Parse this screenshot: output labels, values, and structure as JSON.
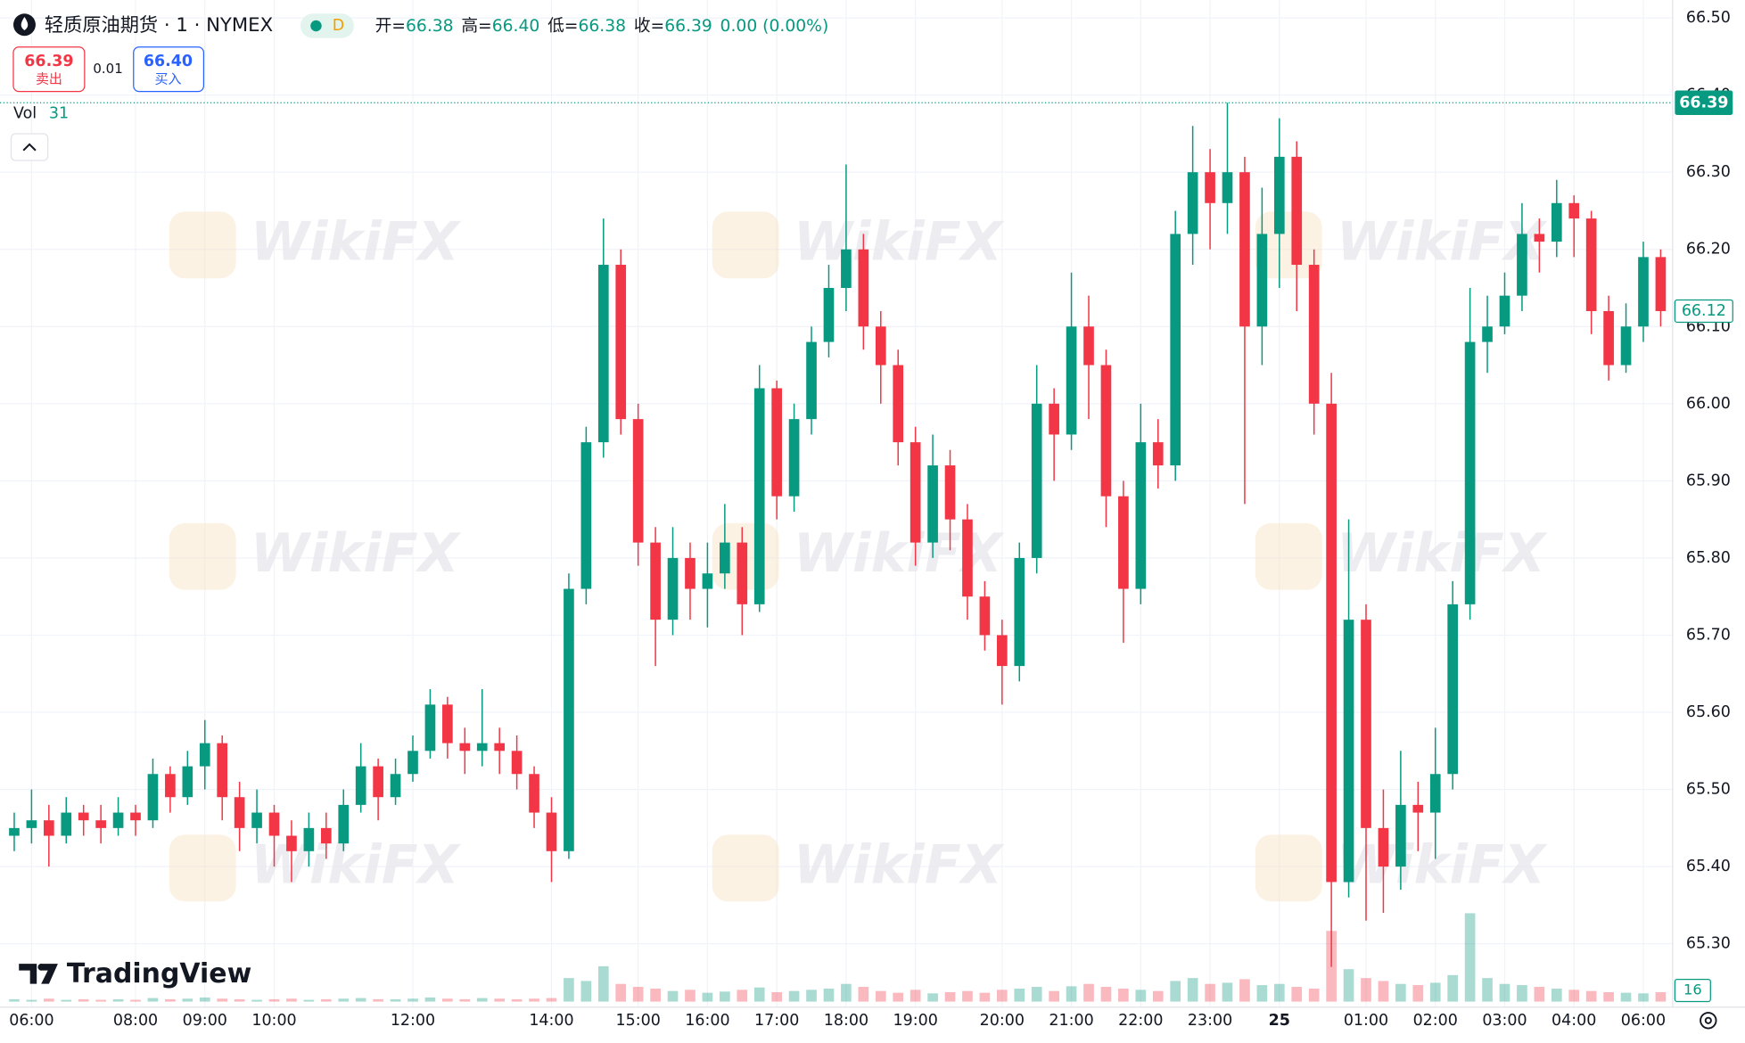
{
  "chart_data": {
    "type": "candlestick",
    "title": "轻质原油期货 · 1 · NYMEX",
    "badge": "D",
    "ohlc_legend": [
      {
        "label": "开=",
        "value": 66.38
      },
      {
        "label": "高=",
        "value": 66.4,
        "value_label": "66.40"
      },
      {
        "label": "低=",
        "value": 66.38
      },
      {
        "label": "收=",
        "value": 66.39
      }
    ],
    "change": "0.00 (0.00%)",
    "sell": {
      "price": 66.39,
      "label": "卖出"
    },
    "spread": 0.01,
    "buy": {
      "price": 66.4,
      "price_label": "66.40",
      "label": "买入"
    },
    "volume_title": "Vol",
    "volume_last": 31,
    "volume_axis_label": 16,
    "bid_price": 66.39,
    "last_price": 66.12,
    "brand": "TradingView",
    "watermark": "WikiFX",
    "up_color": "#089981",
    "down_color": "#f23645",
    "grid": true,
    "xlim": [
      -0.5,
      95.5
    ],
    "xticks": [
      {
        "value": 1,
        "label": "06:00"
      },
      {
        "value": 7,
        "label": "08:00"
      },
      {
        "value": 11,
        "label": "09:00"
      },
      {
        "value": 15,
        "label": "10:00"
      },
      {
        "value": 23,
        "label": "12:00"
      },
      {
        "value": 31,
        "label": "14:00"
      },
      {
        "value": 36,
        "label": "15:00"
      },
      {
        "value": 40,
        "label": "16:00"
      },
      {
        "value": 44,
        "label": "17:00"
      },
      {
        "value": 48,
        "label": "18:00"
      },
      {
        "value": 52,
        "label": "19:00"
      },
      {
        "value": 57,
        "label": "20:00"
      },
      {
        "value": 61,
        "label": "21:00"
      },
      {
        "value": 65,
        "label": "22:00"
      },
      {
        "value": 69,
        "label": "23:00"
      },
      {
        "value": 73,
        "label": "25"
      },
      {
        "value": 78,
        "label": "01:00"
      },
      {
        "value": 82,
        "label": "02:00"
      },
      {
        "value": 86,
        "label": "03:00"
      },
      {
        "value": 90,
        "label": "04:00"
      },
      {
        "value": 94,
        "label": "06:00"
      }
    ],
    "ylim": [
      65.22,
      66.52
    ],
    "yticks": [
      {
        "value": 66.5,
        "label": "66.50"
      },
      {
        "value": 66.4,
        "label": "66.40"
      },
      {
        "value": 66.3,
        "label": "66.30"
      },
      {
        "value": 66.2,
        "label": "66.20"
      },
      {
        "value": 66.1,
        "label": "66.10"
      },
      {
        "value": 66.0,
        "label": "66.00"
      },
      {
        "value": 65.9,
        "label": "65.90"
      },
      {
        "value": 65.8,
        "label": "65.80"
      },
      {
        "value": 65.7,
        "label": "65.70"
      },
      {
        "value": 65.6,
        "label": "65.60"
      },
      {
        "value": 65.5,
        "label": "65.50"
      },
      {
        "value": 65.4,
        "label": "65.40"
      },
      {
        "value": 65.3,
        "label": "65.30"
      }
    ],
    "volume_ylim": [
      0,
      170
    ],
    "candles": {
      "open": [
        65.44,
        65.45,
        65.46,
        65.44,
        65.47,
        65.46,
        65.45,
        65.47,
        65.46,
        65.52,
        65.49,
        65.53,
        65.56,
        65.49,
        65.45,
        65.47,
        65.44,
        65.42,
        65.45,
        65.43,
        65.48,
        65.53,
        65.49,
        65.52,
        65.55,
        65.61,
        65.56,
        65.55,
        65.56,
        65.55,
        65.52,
        65.47,
        65.42,
        65.76,
        65.95,
        66.18,
        65.98,
        65.82,
        65.72,
        65.8,
        65.76,
        65.78,
        65.82,
        65.74,
        66.02,
        65.88,
        65.98,
        66.08,
        66.15,
        66.2,
        66.1,
        66.05,
        65.95,
        65.82,
        65.92,
        65.85,
        65.75,
        65.7,
        65.66,
        65.8,
        66.0,
        65.96,
        66.1,
        66.05,
        65.88,
        65.76,
        65.95,
        65.92,
        66.22,
        66.3,
        66.26,
        66.3,
        66.1,
        66.22,
        66.32,
        66.18,
        66.0,
        65.38,
        65.72,
        65.45,
        65.4,
        65.48,
        65.47,
        65.52,
        65.74,
        66.08,
        66.1,
        66.14,
        66.22,
        66.21,
        66.26,
        66.24,
        66.12,
        66.05,
        66.1,
        66.19
      ],
      "high": [
        65.47,
        65.5,
        65.48,
        65.49,
        65.48,
        65.48,
        65.49,
        65.48,
        65.54,
        65.53,
        65.55,
        65.59,
        65.57,
        65.51,
        65.5,
        65.48,
        65.46,
        65.47,
        65.47,
        65.5,
        65.56,
        65.54,
        65.54,
        65.57,
        65.63,
        65.62,
        65.58,
        65.63,
        65.58,
        65.57,
        65.53,
        65.49,
        65.78,
        65.97,
        66.24,
        66.2,
        66.0,
        65.84,
        65.84,
        65.82,
        65.82,
        65.87,
        65.84,
        66.05,
        66.03,
        66.0,
        66.1,
        66.18,
        66.31,
        66.22,
        66.12,
        66.07,
        65.97,
        65.96,
        65.94,
        65.87,
        65.77,
        65.72,
        65.82,
        66.05,
        66.02,
        66.17,
        66.14,
        66.07,
        65.9,
        66.0,
        65.98,
        66.25,
        66.36,
        66.33,
        66.39,
        66.32,
        66.28,
        66.37,
        66.34,
        66.2,
        66.04,
        65.85,
        65.74,
        65.5,
        65.55,
        65.51,
        65.58,
        65.77,
        66.15,
        66.14,
        66.17,
        66.26,
        66.24,
        66.29,
        66.27,
        66.25,
        66.14,
        66.13,
        66.21,
        66.2
      ],
      "low": [
        65.42,
        65.43,
        65.4,
        65.43,
        65.44,
        65.43,
        65.44,
        65.44,
        65.45,
        65.47,
        65.48,
        65.5,
        65.46,
        65.42,
        65.43,
        65.4,
        65.38,
        65.4,
        65.41,
        65.42,
        65.47,
        65.46,
        65.48,
        65.51,
        65.54,
        65.54,
        65.52,
        65.53,
        65.52,
        65.5,
        65.45,
        65.38,
        65.41,
        65.74,
        65.93,
        65.96,
        65.79,
        65.66,
        65.7,
        65.72,
        65.71,
        65.76,
        65.7,
        65.73,
        65.85,
        65.86,
        65.96,
        66.06,
        66.12,
        66.07,
        66.0,
        65.92,
        65.79,
        65.8,
        65.81,
        65.72,
        65.68,
        65.61,
        65.64,
        65.78,
        65.9,
        65.94,
        65.98,
        65.84,
        65.69,
        65.74,
        65.89,
        65.9,
        66.18,
        66.2,
        66.22,
        65.87,
        66.05,
        66.15,
        66.12,
        65.96,
        65.27,
        65.36,
        65.33,
        65.34,
        65.37,
        65.42,
        65.41,
        65.5,
        65.72,
        66.04,
        66.09,
        66.12,
        66.17,
        66.19,
        66.19,
        66.09,
        66.03,
        66.04,
        66.08,
        66.1
      ],
      "close": [
        65.45,
        65.46,
        65.44,
        65.47,
        65.46,
        65.45,
        65.47,
        65.46,
        65.52,
        65.49,
        65.53,
        65.56,
        65.49,
        65.45,
        65.47,
        65.44,
        65.42,
        65.45,
        65.43,
        65.48,
        65.53,
        65.49,
        65.52,
        65.55,
        65.61,
        65.56,
        65.55,
        65.56,
        65.55,
        65.52,
        65.47,
        65.42,
        65.76,
        65.95,
        66.18,
        65.98,
        65.82,
        65.72,
        65.8,
        65.76,
        65.78,
        65.82,
        65.74,
        66.02,
        65.88,
        65.98,
        66.08,
        66.15,
        66.2,
        66.1,
        66.05,
        65.95,
        65.82,
        65.92,
        65.85,
        65.75,
        65.7,
        65.66,
        65.8,
        66.0,
        65.96,
        66.1,
        66.05,
        65.88,
        65.76,
        65.95,
        65.92,
        66.22,
        66.3,
        66.26,
        66.3,
        66.1,
        66.22,
        66.32,
        66.18,
        66.0,
        65.38,
        65.72,
        65.45,
        65.4,
        65.48,
        65.47,
        65.52,
        65.74,
        66.08,
        66.1,
        66.14,
        66.22,
        66.21,
        66.26,
        66.24,
        66.12,
        66.05,
        66.1,
        66.19,
        66.12
      ],
      "volume": [
        4,
        3,
        5,
        3,
        4,
        3,
        4,
        3,
        6,
        4,
        5,
        7,
        5,
        4,
        3,
        4,
        5,
        3,
        4,
        5,
        6,
        4,
        4,
        5,
        7,
        5,
        4,
        6,
        5,
        4,
        5,
        6,
        40,
        35,
        60,
        30,
        25,
        22,
        18,
        20,
        15,
        17,
        20,
        24,
        16,
        18,
        20,
        22,
        30,
        25,
        18,
        15,
        20,
        14,
        16,
        18,
        15,
        20,
        22,
        25,
        18,
        26,
        30,
        25,
        22,
        20,
        18,
        35,
        40,
        30,
        32,
        38,
        28,
        30,
        25,
        22,
        120,
        55,
        40,
        35,
        30,
        28,
        32,
        45,
        150,
        40,
        30,
        28,
        25,
        22,
        20,
        18,
        16,
        15,
        14,
        16
      ]
    }
  }
}
